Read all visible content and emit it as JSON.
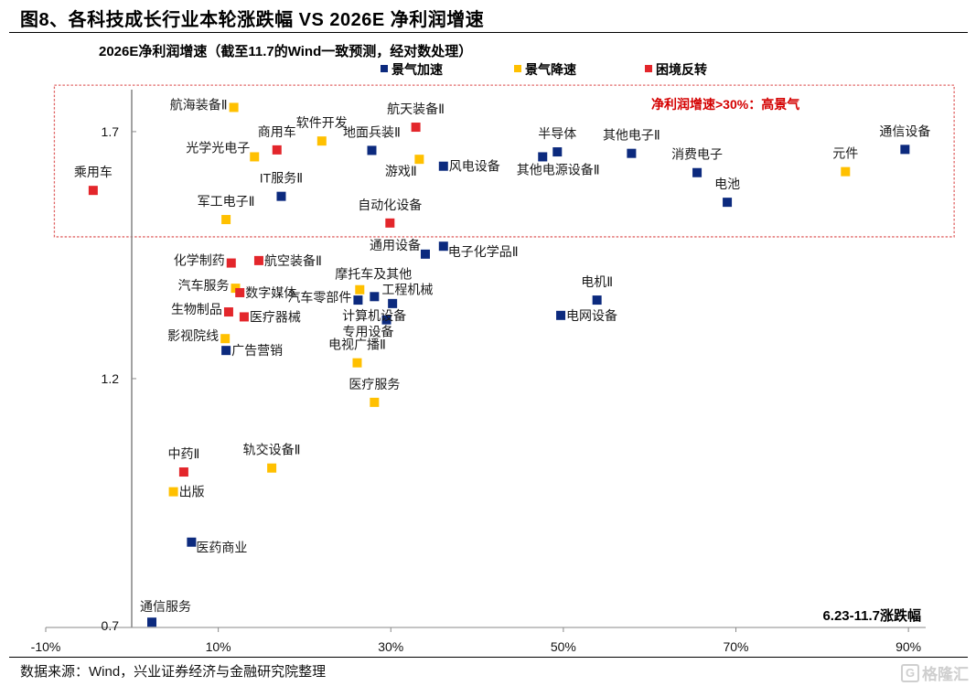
{
  "footer": {
    "source": "数据来源：Wind，兴业证券经济与金融研究院整理",
    "watermark_logo": "G",
    "watermark": "格隆汇"
  },
  "chart_data": {
    "type": "scatter",
    "title": "图8、各科技成长行业本轮涨跌幅 VS 2026E 净利润增速",
    "ylabel": "2026E净利润增速（截至11.7的Wind一致预测，经对数处理）",
    "xlabel": "6.23-11.7涨跌幅",
    "x_unit": "%",
    "xlim": [
      -10,
      92
    ],
    "ylim": [
      0.7,
      1.785
    ],
    "grid": false,
    "legend_position": "top",
    "x_ticks": [
      {
        "value": -10,
        "label": "-10%"
      },
      {
        "value": 10,
        "label": "10%"
      },
      {
        "value": 30,
        "label": "30%"
      },
      {
        "value": 50,
        "label": "50%"
      },
      {
        "value": 70,
        "label": "70%"
      },
      {
        "value": 90,
        "label": "90%"
      }
    ],
    "y_ticks": [
      {
        "value": 1.7,
        "label": "1.7"
      },
      {
        "value": 1.2,
        "label": "1.2"
      },
      {
        "value": 0.7,
        "label": "0.7"
      }
    ],
    "highlight_region": {
      "x_min": -9,
      "x_max": 95.3,
      "y_min": 1.487,
      "y_max": 1.794,
      "text": "净利润增速>30%：高景气",
      "color": "#d40000",
      "border_color": "#e06666"
    },
    "legend": [
      {
        "name": "景气加速",
        "color": "#0c2a7e"
      },
      {
        "name": "景气降速",
        "color": "#ffc000"
      },
      {
        "name": "困境反转",
        "color": "#e3262b"
      }
    ],
    "series": [
      {
        "name": "景气加速",
        "color": "#0c2a7e",
        "points": [
          {
            "label": "地面兵装Ⅱ",
            "x": 27.8,
            "y": 1.662,
            "label_pos": "above"
          },
          {
            "label": "风电设备",
            "x": 36.1,
            "y": 1.63,
            "label_pos": "right"
          },
          {
            "label": "IT服务Ⅱ",
            "x": 17.3,
            "y": 1.569,
            "label_pos": "above"
          },
          {
            "label": "半导体",
            "x": 49.3,
            "y": 1.659,
            "label_pos": "above"
          },
          {
            "label": "其他电源设备Ⅱ",
            "x": 47.6,
            "y": 1.649,
            "label_pos": "below-right"
          },
          {
            "label": "其他电子Ⅱ",
            "x": 57.9,
            "y": 1.656,
            "label_pos": "above"
          },
          {
            "label": "消费电子",
            "x": 65.5,
            "y": 1.617,
            "label_pos": "above"
          },
          {
            "label": "电池",
            "x": 69.0,
            "y": 1.557,
            "label_pos": "above"
          },
          {
            "label": "通信设备",
            "x": 89.6,
            "y": 1.664,
            "label_pos": "above"
          },
          {
            "label": "通用设备",
            "x": 34.0,
            "y": 1.452,
            "label_pos": "above-left"
          },
          {
            "label": "电子化学品Ⅱ",
            "x": 36.1,
            "y": 1.468,
            "label_pos": "right-down"
          },
          {
            "label": "工程机械",
            "x": 28.1,
            "y": 1.366,
            "label_pos": "right-up"
          },
          {
            "label": "汽车零部件",
            "x": 26.2,
            "y": 1.359,
            "label_pos": "left"
          },
          {
            "label": "计算机设备",
            "x": 30.2,
            "y": 1.352,
            "label_pos": "below-left"
          },
          {
            "label": "专用设备",
            "x": 29.5,
            "y": 1.319,
            "label_pos": "below-left"
          },
          {
            "label": "广告营销",
            "x": 10.9,
            "y": 1.257,
            "label_pos": "right"
          },
          {
            "label": "电机Ⅱ",
            "x": 53.9,
            "y": 1.359,
            "label_pos": "above"
          },
          {
            "label": "电网设备",
            "x": 49.7,
            "y": 1.328,
            "label_pos": "right"
          },
          {
            "label": "医药商业",
            "x": 6.9,
            "y": 0.869,
            "label_pos": "right-down"
          },
          {
            "label": "通信服务",
            "x": 2.3,
            "y": 0.707,
            "label_pos": "above-right"
          }
        ]
      },
      {
        "name": "景气降速",
        "color": "#ffc000",
        "points": [
          {
            "label": "航海装备Ⅱ",
            "x": 11.8,
            "y": 1.749,
            "label_pos": "left"
          },
          {
            "label": "软件开发",
            "x": 22.0,
            "y": 1.681,
            "label_pos": "above"
          },
          {
            "label": "光学光电子",
            "x": 14.2,
            "y": 1.649,
            "label_pos": "above-left"
          },
          {
            "label": "游戏Ⅱ",
            "x": 33.3,
            "y": 1.644,
            "label_pos": "below-left"
          },
          {
            "label": "军工电子Ⅱ",
            "x": 10.9,
            "y": 1.522,
            "label_pos": "above"
          },
          {
            "label": "元件",
            "x": 82.7,
            "y": 1.619,
            "label_pos": "above"
          },
          {
            "label": "汽车服务",
            "x": 12.0,
            "y": 1.383,
            "label_pos": "left"
          },
          {
            "label": "摩托车及其他",
            "x": 26.4,
            "y": 1.38,
            "label_pos": "above-right"
          },
          {
            "label": "影视院线",
            "x": 10.8,
            "y": 1.281,
            "label_pos": "left"
          },
          {
            "label": "电视广播Ⅱ",
            "x": 26.1,
            "y": 1.232,
            "label_pos": "above"
          },
          {
            "label": "医疗服务",
            "x": 28.1,
            "y": 1.152,
            "label_pos": "above"
          },
          {
            "label": "轨交设备Ⅱ",
            "x": 16.2,
            "y": 1.019,
            "label_pos": "above"
          },
          {
            "label": "出版",
            "x": 4.8,
            "y": 0.971,
            "label_pos": "right"
          }
        ]
      },
      {
        "name": "困境反转",
        "color": "#e3262b",
        "points": [
          {
            "label": "航天装备Ⅱ",
            "x": 32.9,
            "y": 1.709,
            "label_pos": "above"
          },
          {
            "label": "商用车",
            "x": 16.8,
            "y": 1.663,
            "label_pos": "above"
          },
          {
            "label": "乘用车",
            "x": -4.5,
            "y": 1.581,
            "label_pos": "above"
          },
          {
            "label": "自动化设备",
            "x": 29.9,
            "y": 1.515,
            "label_pos": "above"
          },
          {
            "label": "化学制药",
            "x": 11.5,
            "y": 1.434,
            "label_pos": "left"
          },
          {
            "label": "航空装备Ⅱ",
            "x": 14.7,
            "y": 1.439,
            "label_pos": "right"
          },
          {
            "label": "数字媒体",
            "x": 12.5,
            "y": 1.374,
            "label_pos": "right"
          },
          {
            "label": "生物制品",
            "x": 11.2,
            "y": 1.335,
            "label_pos": "left"
          },
          {
            "label": "医疗器械",
            "x": 13.0,
            "y": 1.325,
            "label_pos": "right"
          },
          {
            "label": "中药Ⅱ",
            "x": 6.0,
            "y": 1.011,
            "label_pos": "above"
          }
        ]
      }
    ]
  }
}
